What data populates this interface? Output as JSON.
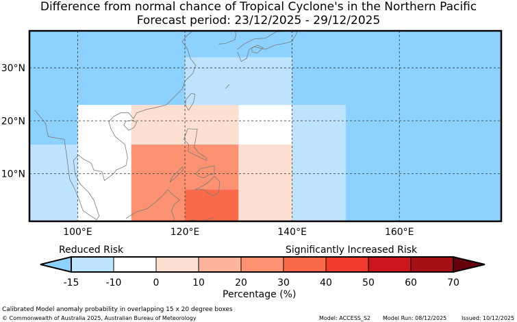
{
  "title_line1": "Difference from normal chance of Tropical Cyclone's in the Northern Pacific",
  "title_line2": "Forecast period: 23/12/2025 - 29/12/2025",
  "map": {
    "lon_range": [
      91,
      179
    ],
    "lat_range": [
      1,
      37
    ],
    "lon_ticks": [
      "100°E",
      "120°E",
      "140°E",
      "160°E"
    ],
    "lat_ticks": [
      "30°N",
      "20°N",
      "10°N"
    ],
    "colors": {
      "ocean": "#8dd1fe",
      "land_outline": "#7a7a7a"
    },
    "anomaly_boxes": [
      {
        "lon": [
          91,
          100
        ],
        "lat": [
          1,
          15.5
        ],
        "bin": "-15 to -10",
        "color": "#bde3fe"
      },
      {
        "lon": [
          100,
          110
        ],
        "lat": [
          1,
          23
        ],
        "bin": "-10 to 0",
        "color": "#ffffff"
      },
      {
        "lon": [
          110,
          120
        ],
        "lat": [
          15.5,
          23
        ],
        "bin": "0 to 10",
        "color": "#fee0d3"
      },
      {
        "lon": [
          120,
          130
        ],
        "lat": [
          15.5,
          23
        ],
        "bin": "0 to 10",
        "color": "#fee0d3"
      },
      {
        "lon": [
          110,
          120
        ],
        "lat": [
          1,
          15.5
        ],
        "bin": "20 to 30",
        "color": "#fc9272"
      },
      {
        "lon": [
          120,
          130
        ],
        "lat": [
          7,
          15.5
        ],
        "bin": "20 to 30",
        "color": "#fc9272"
      },
      {
        "lon": [
          120,
          130
        ],
        "lat": [
          1,
          7
        ],
        "bin": "30 to 40",
        "color": "#fb6a4a"
      },
      {
        "lon": [
          130,
          140
        ],
        "lat": [
          15.5,
          23
        ],
        "bin": "-10 to 0",
        "color": "#ffffff"
      },
      {
        "lon": [
          130,
          140
        ],
        "lat": [
          1,
          15.5
        ],
        "bin": "0 to 10",
        "color": "#fee0d3"
      },
      {
        "lon": [
          140,
          150
        ],
        "lat": [
          1,
          23
        ],
        "bin": "-15 to -10",
        "color": "#bde3fe"
      },
      {
        "lon": [
          120,
          140
        ],
        "lat": [
          23,
          32
        ],
        "bin": "-15 to -10",
        "color": "#bde3fe"
      }
    ]
  },
  "legend": {
    "reduced_label": "Reduced Risk",
    "increased_label": "Significantly Increased Risk",
    "xlabel": "Percentage (%)",
    "tick_labels": [
      "-15",
      "-10",
      "0",
      "10",
      "20",
      "30",
      "40",
      "50",
      "60",
      "70"
    ],
    "bins": [
      "#bde3fe",
      "#ffffff",
      "#fee0d3",
      "#fdb49c",
      "#fc9272",
      "#fb6a4a",
      "#ee3b2c",
      "#ca171c",
      "#a50f15"
    ],
    "under_color": "#8dd1fe",
    "over_color": "#67000d"
  },
  "footer": {
    "method_note": "Calibrated Model anomaly probability in overlapping 15 x 20 degree boxes",
    "copyright": "© Commonwealth of Australia 2025, Australian Bureau of Meteorology",
    "model": "Model: ACCESS_S2",
    "model_run": "Model Run: 08/12/2025",
    "issued": "Issued: 10/12/2025"
  }
}
